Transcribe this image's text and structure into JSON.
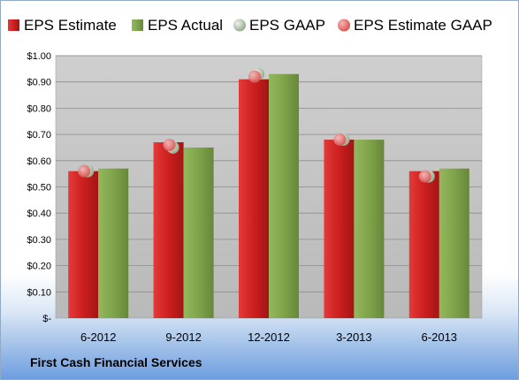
{
  "company_name": "First Cash Financial Services",
  "colors": {
    "eps_estimate": "#cc1f1f",
    "eps_actual": "#7fa34a",
    "eps_gaap": "#a7b99d",
    "eps_estimate_gaap": "#e57c7c",
    "plot_background": "#c0c0c0"
  },
  "chart_data": {
    "type": "bar",
    "categories": [
      "6-2012",
      "9-2012",
      "12-2012",
      "3-2013",
      "6-2013"
    ],
    "series": [
      {
        "name": "EPS Estimate",
        "values": [
          0.56,
          0.67,
          0.91,
          0.68,
          0.56
        ]
      },
      {
        "name": "EPS Actual",
        "values": [
          0.57,
          0.65,
          0.93,
          0.68,
          0.57
        ]
      },
      {
        "name": "EPS GAAP",
        "values": [
          0.56,
          0.65,
          0.93,
          0.68,
          0.54
        ]
      },
      {
        "name": "EPS Estimate GAAP",
        "values": [
          0.56,
          0.66,
          0.92,
          0.68,
          0.54
        ]
      }
    ],
    "y_ticks": [
      "$-",
      "$0.10",
      "$0.20",
      "$0.30",
      "$0.40",
      "$0.50",
      "$0.60",
      "$0.70",
      "$0.80",
      "$0.90",
      "$1.00"
    ],
    "ylim": [
      0,
      1.0
    ],
    "grid": true,
    "legend_position": "top"
  }
}
